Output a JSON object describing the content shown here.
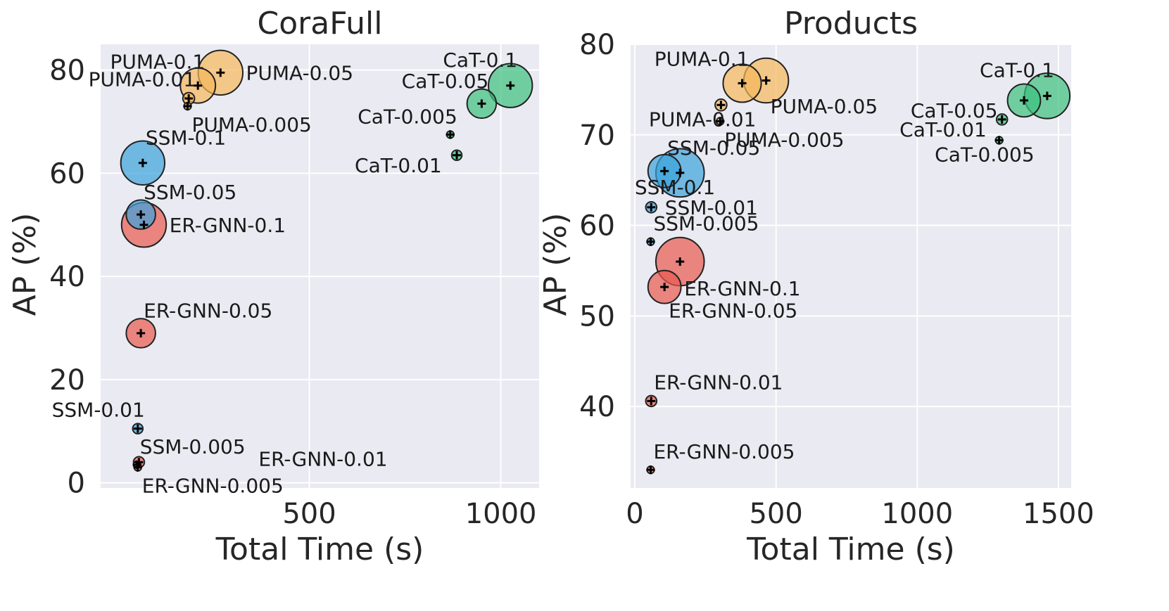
{
  "colors": {
    "PUMA": "#f5b85b",
    "SSM": "#3ba3dc",
    "ER-GNN": "#e8594f",
    "CaT": "#3cc17d"
  },
  "chart_data": [
    {
      "type": "scatter",
      "title": "CoraFull",
      "xlabel": "Total Time (s)",
      "ylabel": "AP (%)",
      "xlim": [
        -45,
        1100
      ],
      "ylim": [
        -1,
        85
      ],
      "xticks": [
        500,
        1000
      ],
      "yticks": [
        0,
        20,
        40,
        60,
        80
      ],
      "points": [
        {
          "label": "PUMA-0.1",
          "x": 209,
          "y": 77,
          "size": 0.48,
          "group": "PUMA",
          "label_pos": "above-left"
        },
        {
          "label": "PUMA-0.05",
          "x": 268,
          "y": 79.5,
          "size": 0.61,
          "group": "PUMA",
          "label_pos": "right"
        },
        {
          "label": "PUMA-0.01",
          "x": 185,
          "y": 74.5,
          "size": 0.16,
          "group": "PUMA",
          "label_pos": "above-left"
        },
        {
          "label": "PUMA-0.005",
          "x": 182,
          "y": 73,
          "size": 0.1,
          "group": "PUMA",
          "label_pos": "below-right"
        },
        {
          "label": "SSM-0.1",
          "x": 65,
          "y": 62,
          "size": 0.6,
          "group": "SSM",
          "label_pos": "above-right"
        },
        {
          "label": "SSM-0.05",
          "x": 60,
          "y": 52,
          "size": 0.4,
          "group": "SSM",
          "label_pos": "above-right"
        },
        {
          "label": "SSM-0.01",
          "x": 52,
          "y": 10.5,
          "size": 0.14,
          "group": "SSM",
          "label_pos": "above-left"
        },
        {
          "label": "SSM-0.005",
          "x": 50,
          "y": 3.5,
          "size": 0.1,
          "group": "SSM",
          "label_pos": "above-right"
        },
        {
          "label": "ER-GNN-0.1",
          "x": 68,
          "y": 50,
          "size": 0.61,
          "group": "ER-GNN",
          "label_pos": "right"
        },
        {
          "label": "ER-GNN-0.05",
          "x": 60,
          "y": 29,
          "size": 0.4,
          "group": "ER-GNN",
          "label_pos": "above-right"
        },
        {
          "label": "ER-GNN-0.01",
          "x": 55,
          "y": 4,
          "size": 0.15,
          "group": "ER-GNN",
          "label_pos": "far-right"
        },
        {
          "label": "ER-GNN-0.005",
          "x": 52,
          "y": 3,
          "size": 0.1,
          "group": "ER-GNN",
          "label_pos": "below-right"
        },
        {
          "label": "CaT-0.1",
          "x": 1025,
          "y": 77,
          "size": 0.6,
          "group": "CaT",
          "label_pos": "above-left"
        },
        {
          "label": "CaT-0.05",
          "x": 950,
          "y": 73.5,
          "size": 0.4,
          "group": "CaT",
          "label_pos": "above-left"
        },
        {
          "label": "CaT-0.01",
          "x": 885,
          "y": 63.5,
          "size": 0.14,
          "group": "CaT",
          "label_pos": "left"
        },
        {
          "label": "CaT-0.005",
          "x": 868,
          "y": 67.5,
          "size": 0.1,
          "group": "CaT",
          "label_pos": "above-left"
        }
      ]
    },
    {
      "type": "scatter",
      "title": "Products",
      "xlabel": "Total Time (s)",
      "ylabel": "AP (%)",
      "xlim": [
        -15,
        1545
      ],
      "ylim": [
        31,
        80
      ],
      "xticks": [
        0,
        500,
        1000,
        1500
      ],
      "yticks": [
        40,
        50,
        60,
        70,
        80
      ],
      "points": [
        {
          "label": "PUMA-0.1",
          "x": 380,
          "y": 75.7,
          "size": 0.52,
          "group": "PUMA",
          "label_pos": "above-left"
        },
        {
          "label": "PUMA-0.05",
          "x": 465,
          "y": 76,
          "size": 0.61,
          "group": "PUMA",
          "label_pos": "below-right"
        },
        {
          "label": "PUMA-0.01",
          "x": 305,
          "y": 73.3,
          "size": 0.16,
          "group": "PUMA",
          "label_pos": "below-left"
        },
        {
          "label": "PUMA-0.005",
          "x": 302,
          "y": 71.5,
          "size": 0.1,
          "group": "PUMA",
          "label_pos": "below-right"
        },
        {
          "label": "SSM-0.1",
          "x": 160,
          "y": 65.8,
          "size": 0.66,
          "group": "SSM",
          "label_pos": "below-left"
        },
        {
          "label": "SSM-0.05",
          "x": 105,
          "y": 66,
          "size": 0.45,
          "group": "SSM",
          "label_pos": "above-right"
        },
        {
          "label": "SSM-0.01",
          "x": 58,
          "y": 62,
          "size": 0.15,
          "group": "SSM",
          "label_pos": "right"
        },
        {
          "label": "SSM-0.005",
          "x": 56,
          "y": 58.2,
          "size": 0.1,
          "group": "SSM",
          "label_pos": "above-right"
        },
        {
          "label": "ER-GNN-0.1",
          "x": 160,
          "y": 56,
          "size": 0.66,
          "group": "ER-GNN",
          "label_pos": "below-right"
        },
        {
          "label": "ER-GNN-0.05",
          "x": 105,
          "y": 53.2,
          "size": 0.45,
          "group": "ER-GNN",
          "label_pos": "below-right"
        },
        {
          "label": "ER-GNN-0.01",
          "x": 58,
          "y": 40.6,
          "size": 0.15,
          "group": "ER-GNN",
          "label_pos": "above-right"
        },
        {
          "label": "ER-GNN-0.005",
          "x": 56,
          "y": 33,
          "size": 0.1,
          "group": "ER-GNN",
          "label_pos": "above-right"
        },
        {
          "label": "CaT-0.1",
          "x": 1460,
          "y": 74.3,
          "size": 0.62,
          "group": "CaT",
          "label_pos": "above-left"
        },
        {
          "label": "CaT-0.05",
          "x": 1378,
          "y": 73.8,
          "size": 0.45,
          "group": "CaT",
          "label_pos": "left"
        },
        {
          "label": "CaT-0.01",
          "x": 1300,
          "y": 71.7,
          "size": 0.15,
          "group": "CaT",
          "label_pos": "left"
        },
        {
          "label": "CaT-0.005",
          "x": 1290,
          "y": 69.4,
          "size": 0.1,
          "group": "CaT",
          "label_pos": "below-left"
        }
      ]
    }
  ]
}
